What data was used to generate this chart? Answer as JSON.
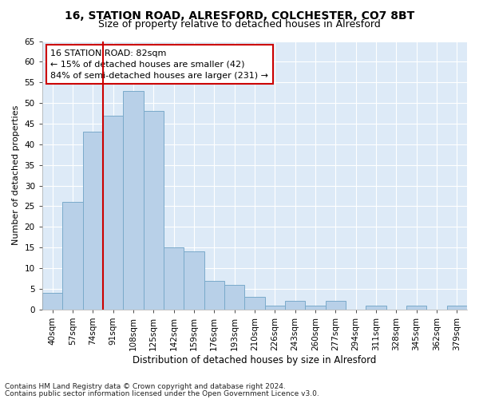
{
  "title1": "16, STATION ROAD, ALRESFORD, COLCHESTER, CO7 8BT",
  "title2": "Size of property relative to detached houses in Alresford",
  "xlabel": "Distribution of detached houses by size in Alresford",
  "ylabel": "Number of detached properties",
  "categories": [
    "40sqm",
    "57sqm",
    "74sqm",
    "91sqm",
    "108sqm",
    "125sqm",
    "142sqm",
    "159sqm",
    "176sqm",
    "193sqm",
    "210sqm",
    "226sqm",
    "243sqm",
    "260sqm",
    "277sqm",
    "294sqm",
    "311sqm",
    "328sqm",
    "345sqm",
    "362sqm",
    "379sqm"
  ],
  "values": [
    4,
    26,
    43,
    47,
    53,
    48,
    15,
    14,
    7,
    6,
    3,
    1,
    2,
    1,
    2,
    0,
    1,
    0,
    1,
    0,
    1
  ],
  "bar_color": "#b8d0e8",
  "bar_edge_color": "#7aaaca",
  "vline_color": "#cc0000",
  "annotation_text": "16 STATION ROAD: 82sqm\n← 15% of detached houses are smaller (42)\n84% of semi-detached houses are larger (231) →",
  "annotation_box_color": "#ffffff",
  "annotation_box_edge_color": "#cc0000",
  "ylim": [
    0,
    65
  ],
  "yticks": [
    0,
    5,
    10,
    15,
    20,
    25,
    30,
    35,
    40,
    45,
    50,
    55,
    60,
    65
  ],
  "footer1": "Contains HM Land Registry data © Crown copyright and database right 2024.",
  "footer2": "Contains public sector information licensed under the Open Government Licence v3.0.",
  "bg_color": "#ddeaf7",
  "grid_color": "#ffffff",
  "fig_bg_color": "#ffffff",
  "title1_fontsize": 10,
  "title2_fontsize": 9,
  "xlabel_fontsize": 8.5,
  "ylabel_fontsize": 8,
  "tick_fontsize": 7.5,
  "annotation_fontsize": 8,
  "footer_fontsize": 6.5
}
